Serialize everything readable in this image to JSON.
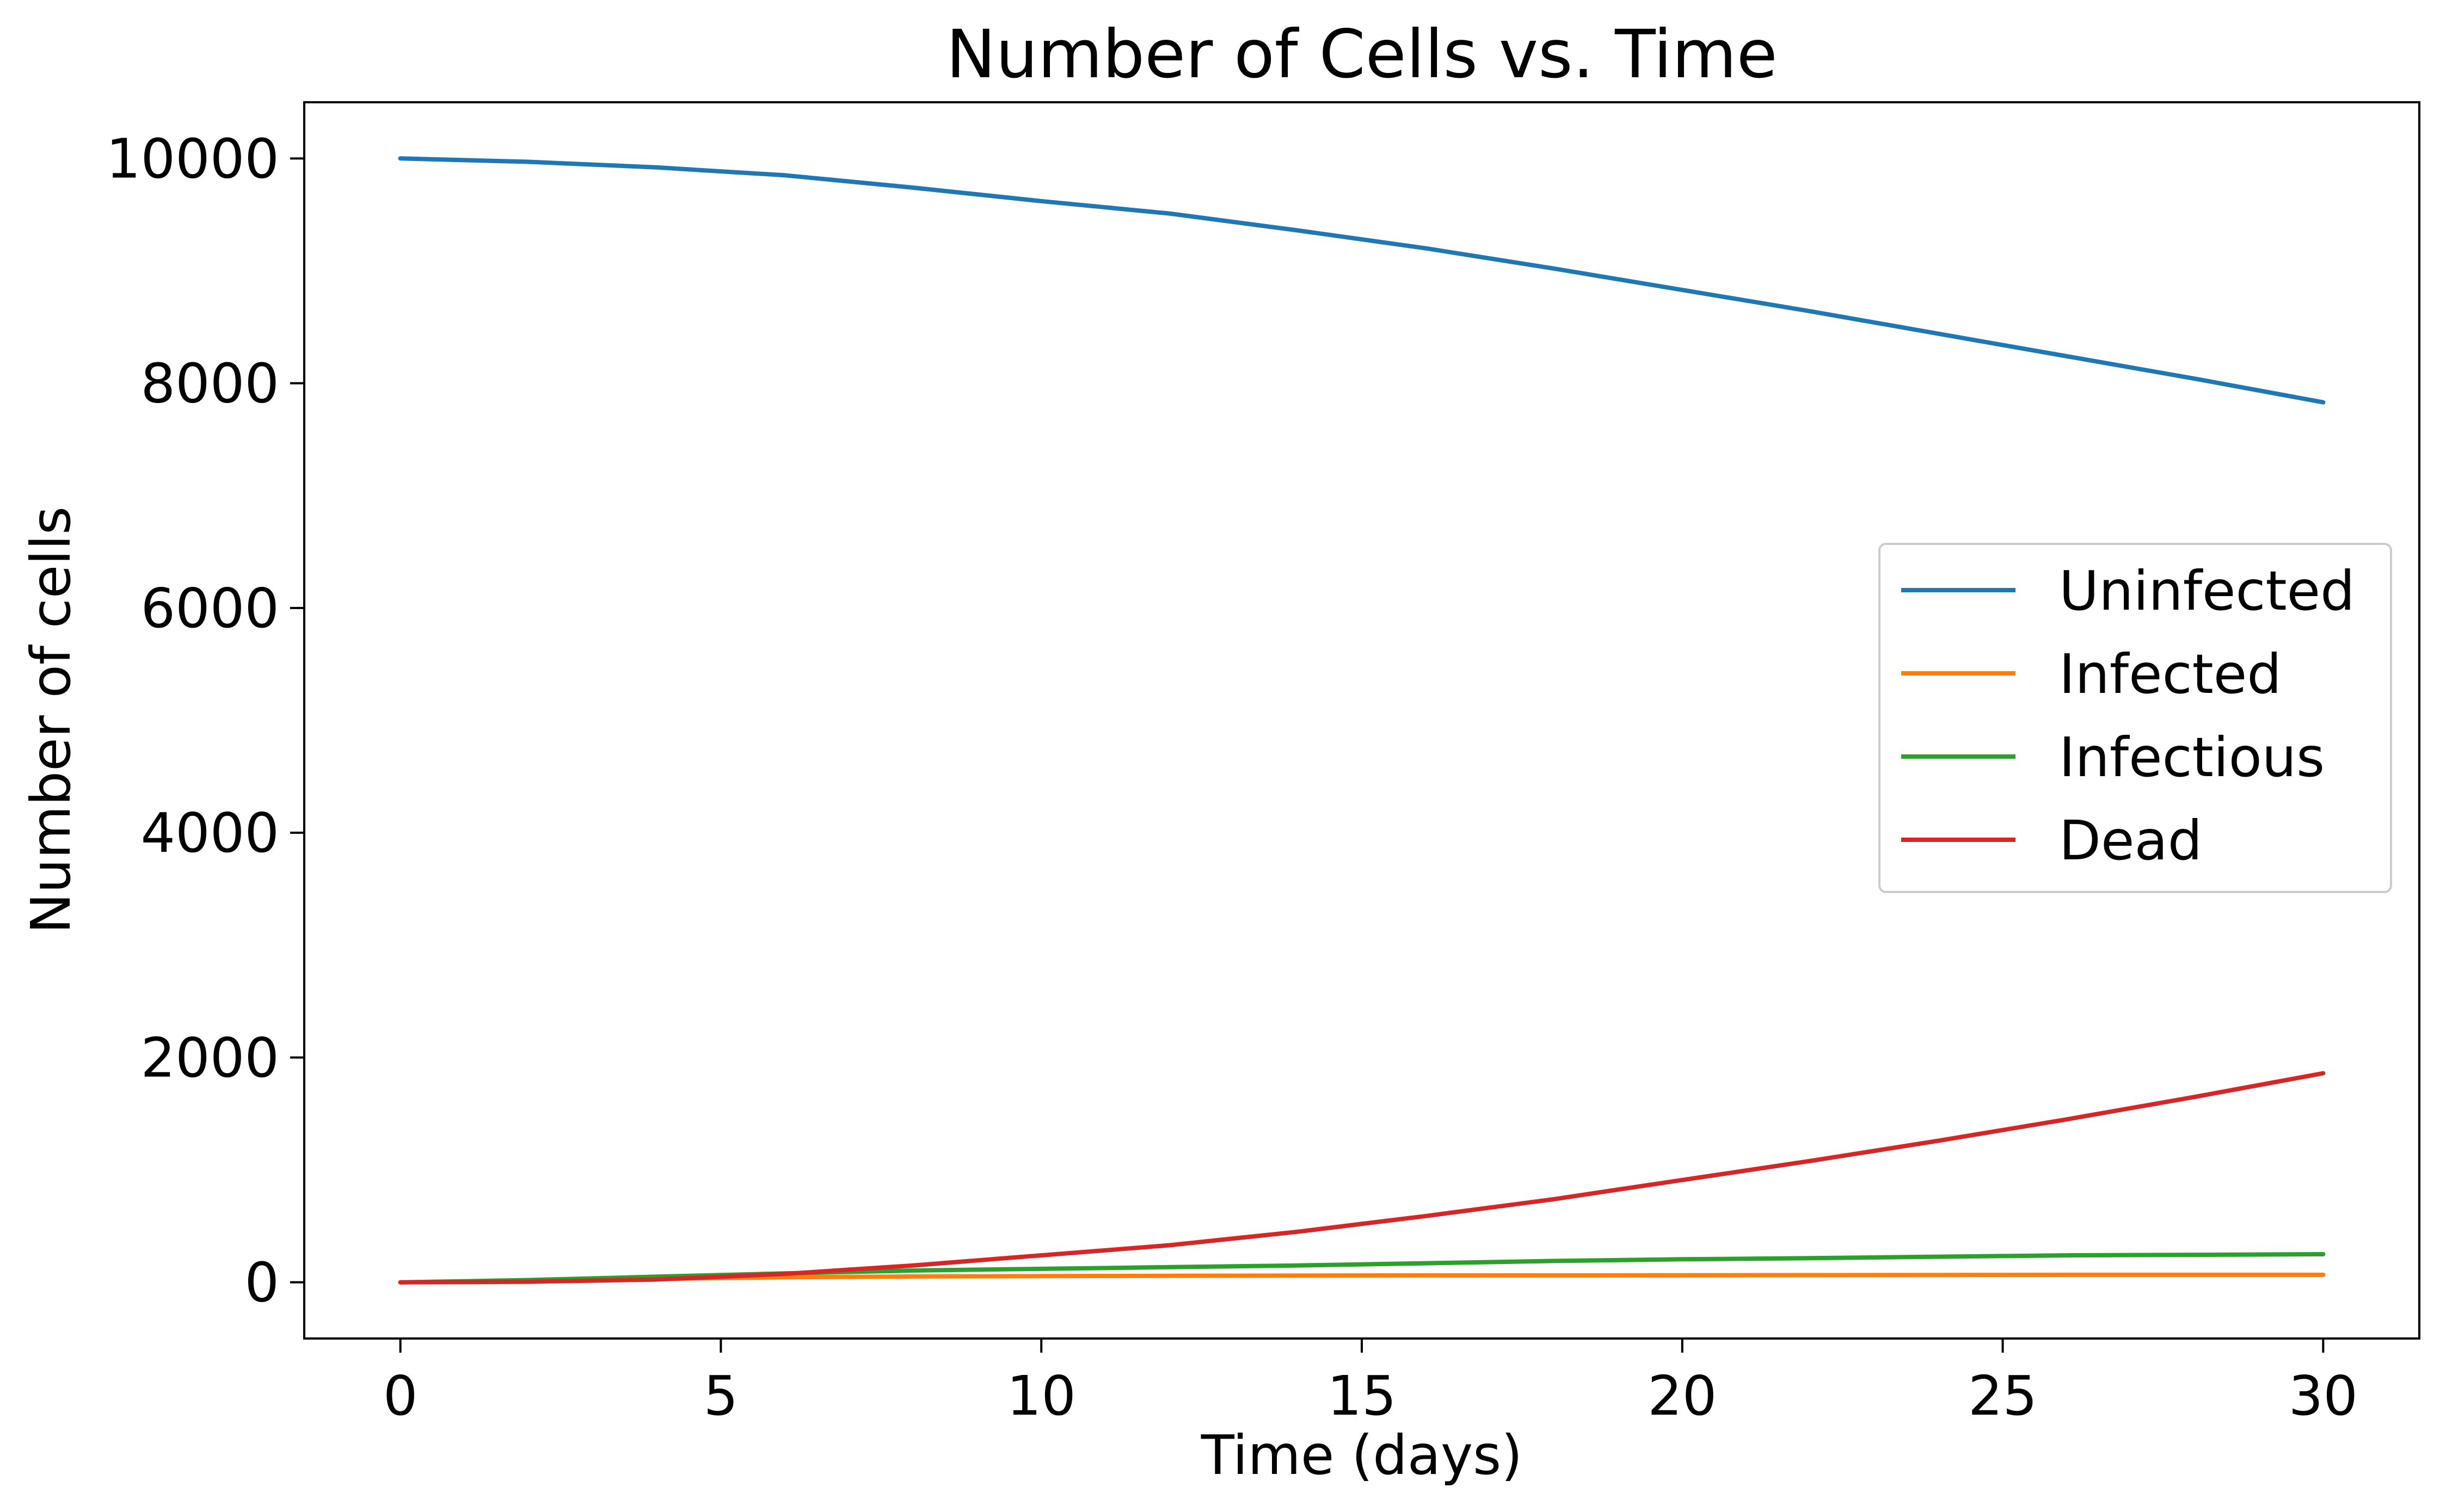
{
  "chart_data": {
    "type": "line",
    "title": "Number of Cells vs. Time",
    "xlabel": "Time (days)",
    "ylabel": "Number of cells",
    "xlim": [
      -1.5,
      31.5
    ],
    "ylim": [
      -500,
      10500
    ],
    "xticks": [
      0,
      5,
      10,
      15,
      20,
      25,
      30
    ],
    "yticks": [
      0,
      2000,
      4000,
      6000,
      8000,
      10000
    ],
    "grid": false,
    "legend_position": "center-right",
    "series": [
      {
        "name": "Uninfected",
        "color": "#1f77b4",
        "x": [
          0,
          2,
          4,
          6,
          8,
          10,
          12,
          14,
          16,
          18,
          20,
          22,
          24,
          26,
          28,
          30
        ],
        "y": [
          10000,
          9970,
          9920,
          9850,
          9740,
          9620,
          9510,
          9360,
          9200,
          9020,
          8830,
          8640,
          8440,
          8240,
          8040,
          7830
        ]
      },
      {
        "name": "Infected",
        "color": "#ff7f0e",
        "x": [
          0,
          2,
          4,
          6,
          8,
          10,
          12,
          14,
          16,
          18,
          20,
          22,
          24,
          26,
          28,
          30
        ],
        "y": [
          0,
          15,
          30,
          45,
          52,
          55,
          58,
          60,
          62,
          62,
          63,
          64,
          65,
          66,
          66,
          66
        ]
      },
      {
        "name": "Infectious",
        "color": "#2ca02c",
        "x": [
          0,
          2,
          4,
          6,
          8,
          10,
          12,
          14,
          16,
          18,
          20,
          22,
          24,
          26,
          28,
          30
        ],
        "y": [
          0,
          20,
          50,
          80,
          105,
          120,
          135,
          150,
          170,
          190,
          205,
          215,
          228,
          240,
          245,
          250
        ]
      },
      {
        "name": "Dead",
        "color": "#d62728",
        "x": [
          0,
          2,
          4,
          6,
          8,
          10,
          12,
          14,
          16,
          18,
          20,
          22,
          24,
          26,
          28,
          30
        ],
        "y": [
          0,
          5,
          25,
          75,
          150,
          240,
          330,
          450,
          590,
          740,
          910,
          1080,
          1260,
          1450,
          1650,
          1860
        ]
      }
    ]
  }
}
